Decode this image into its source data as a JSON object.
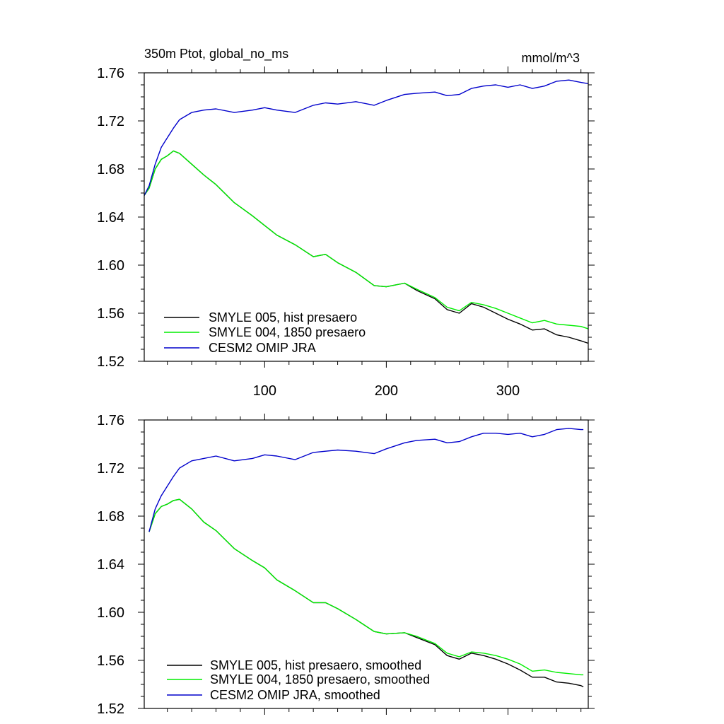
{
  "chart_data": [
    {
      "type": "line",
      "title": "350m Ptot, global_no_ms",
      "units": "mmol/m^3",
      "xlim": [
        1,
        366
      ],
      "ylim": [
        1.52,
        1.76
      ],
      "yticks": [
        "1.52",
        "1.56",
        "1.60",
        "1.64",
        "1.68",
        "1.72",
        "1.76"
      ],
      "xticks": [
        "100",
        "200",
        "300"
      ],
      "legend_position": "bottom-left",
      "series": [
        {
          "name": "SMYLE 005, hist presaero",
          "color": "#000000",
          "x": [
            1,
            5,
            10,
            15,
            20,
            25,
            30,
            40,
            50,
            60,
            75,
            90,
            100,
            110,
            125,
            140,
            150,
            160,
            175,
            190,
            200,
            215,
            225,
            240,
            250,
            260,
            270,
            280,
            290,
            300,
            310,
            320,
            330,
            340,
            350,
            360,
            366
          ],
          "y": [
            1.658,
            1.664,
            1.68,
            1.688,
            1.691,
            1.695,
            1.693,
            1.684,
            1.675,
            1.667,
            1.652,
            1.641,
            1.633,
            1.625,
            1.617,
            1.607,
            1.609,
            1.602,
            1.594,
            1.583,
            1.582,
            1.585,
            1.579,
            1.572,
            1.563,
            1.56,
            1.568,
            1.565,
            1.56,
            1.555,
            1.551,
            1.546,
            1.547,
            1.542,
            1.54,
            1.537,
            1.535
          ]
        },
        {
          "name": "SMYLE 004, 1850 presaero",
          "color": "#00ee00",
          "x": [
            1,
            5,
            10,
            15,
            20,
            25,
            30,
            40,
            50,
            60,
            75,
            90,
            100,
            110,
            125,
            140,
            150,
            160,
            175,
            190,
            200,
            215,
            225,
            240,
            250,
            260,
            270,
            280,
            290,
            300,
            310,
            320,
            330,
            340,
            350,
            360,
            366
          ],
          "y": [
            1.658,
            1.664,
            1.68,
            1.688,
            1.691,
            1.695,
            1.693,
            1.684,
            1.675,
            1.667,
            1.652,
            1.641,
            1.633,
            1.625,
            1.617,
            1.607,
            1.609,
            1.602,
            1.594,
            1.583,
            1.582,
            1.585,
            1.58,
            1.573,
            1.565,
            1.562,
            1.569,
            1.567,
            1.564,
            1.56,
            1.556,
            1.552,
            1.554,
            1.551,
            1.55,
            1.549,
            1.547
          ]
        },
        {
          "name": "CESM2 OMIP JRA",
          "color": "#0000cc",
          "x": [
            1,
            5,
            10,
            15,
            20,
            25,
            30,
            40,
            50,
            60,
            75,
            90,
            100,
            110,
            125,
            140,
            150,
            160,
            175,
            190,
            200,
            215,
            225,
            240,
            250,
            260,
            270,
            280,
            290,
            300,
            310,
            320,
            330,
            340,
            350,
            360,
            366
          ],
          "y": [
            1.658,
            1.666,
            1.684,
            1.698,
            1.706,
            1.714,
            1.721,
            1.727,
            1.729,
            1.73,
            1.727,
            1.729,
            1.731,
            1.729,
            1.727,
            1.733,
            1.735,
            1.734,
            1.736,
            1.733,
            1.737,
            1.742,
            1.743,
            1.744,
            1.741,
            1.742,
            1.747,
            1.749,
            1.75,
            1.748,
            1.75,
            1.747,
            1.749,
            1.753,
            1.754,
            1.752,
            1.751
          ]
        }
      ]
    },
    {
      "type": "line",
      "title": "",
      "units": "",
      "xlim": [
        1,
        366
      ],
      "ylim": [
        1.52,
        1.76
      ],
      "yticks": [
        "1.52",
        "1.56",
        "1.60",
        "1.64",
        "1.68",
        "1.72",
        "1.76"
      ],
      "xticks": [],
      "legend_position": "bottom-left",
      "series": [
        {
          "name": "SMYLE 005, hist presaero, smoothed",
          "color": "#000000",
          "x": [
            5,
            10,
            15,
            20,
            25,
            30,
            40,
            50,
            60,
            75,
            90,
            100,
            110,
            125,
            140,
            150,
            160,
            175,
            190,
            200,
            215,
            225,
            240,
            250,
            260,
            270,
            280,
            290,
            300,
            310,
            320,
            330,
            340,
            350,
            360,
            362
          ],
          "y": [
            1.667,
            1.682,
            1.688,
            1.69,
            1.693,
            1.694,
            1.686,
            1.675,
            1.668,
            1.653,
            1.643,
            1.637,
            1.627,
            1.618,
            1.608,
            1.608,
            1.603,
            1.594,
            1.584,
            1.582,
            1.583,
            1.579,
            1.573,
            1.564,
            1.561,
            1.566,
            1.564,
            1.561,
            1.557,
            1.552,
            1.546,
            1.546,
            1.542,
            1.541,
            1.539,
            1.538
          ]
        },
        {
          "name": "SMYLE 004, 1850 presaero, smoothed",
          "color": "#00ee00",
          "x": [
            5,
            10,
            15,
            20,
            25,
            30,
            40,
            50,
            60,
            75,
            90,
            100,
            110,
            125,
            140,
            150,
            160,
            175,
            190,
            200,
            215,
            225,
            240,
            250,
            260,
            270,
            280,
            290,
            300,
            310,
            320,
            330,
            340,
            350,
            360,
            362
          ],
          "y": [
            1.667,
            1.682,
            1.688,
            1.69,
            1.693,
            1.694,
            1.686,
            1.675,
            1.668,
            1.653,
            1.643,
            1.637,
            1.627,
            1.618,
            1.608,
            1.608,
            1.603,
            1.594,
            1.584,
            1.582,
            1.583,
            1.58,
            1.574,
            1.566,
            1.563,
            1.567,
            1.566,
            1.564,
            1.561,
            1.557,
            1.551,
            1.552,
            1.55,
            1.549,
            1.548,
            1.548
          ]
        },
        {
          "name": "CESM2 OMIP JRA, smoothed",
          "color": "#0000cc",
          "x": [
            5,
            10,
            15,
            20,
            25,
            30,
            40,
            50,
            60,
            75,
            90,
            100,
            110,
            125,
            140,
            150,
            160,
            175,
            190,
            200,
            215,
            225,
            240,
            250,
            260,
            270,
            280,
            290,
            300,
            310,
            320,
            330,
            340,
            350,
            360,
            362
          ],
          "y": [
            1.667,
            1.686,
            1.697,
            1.705,
            1.713,
            1.72,
            1.726,
            1.728,
            1.73,
            1.726,
            1.728,
            1.731,
            1.73,
            1.727,
            1.733,
            1.734,
            1.735,
            1.734,
            1.732,
            1.736,
            1.741,
            1.743,
            1.744,
            1.741,
            1.742,
            1.746,
            1.749,
            1.749,
            1.748,
            1.749,
            1.746,
            1.748,
            1.752,
            1.753,
            1.752,
            1.752
          ]
        }
      ]
    }
  ]
}
